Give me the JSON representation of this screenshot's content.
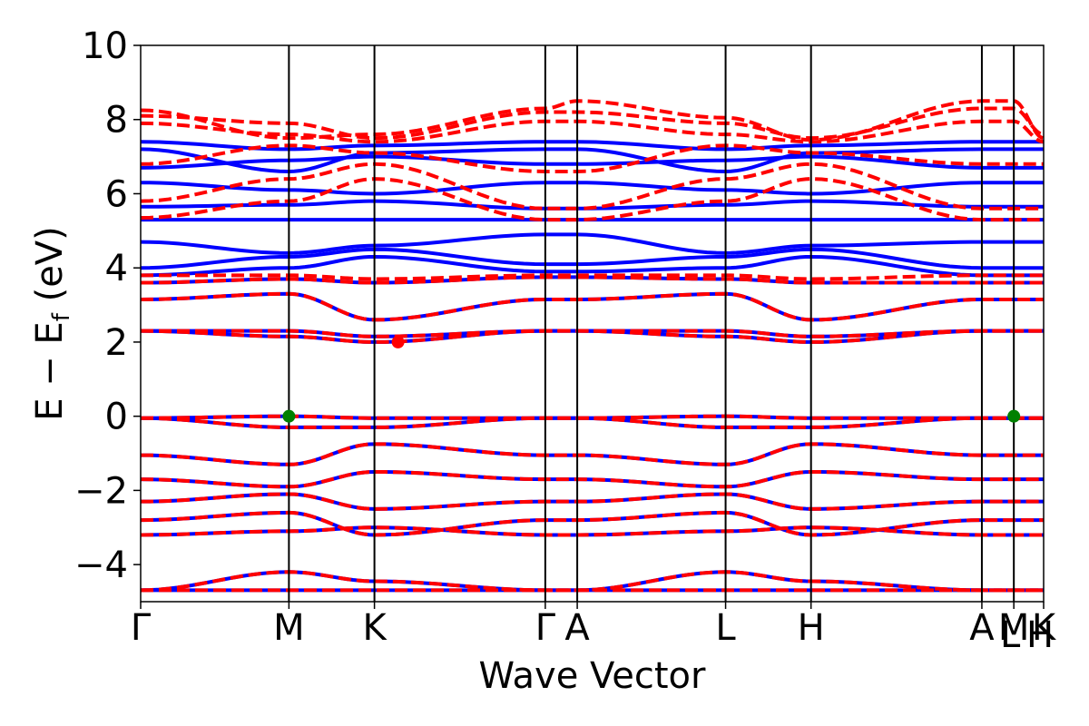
{
  "chart_data": {
    "type": "line",
    "title": "",
    "xlabel": "Wave Vector",
    "ylabel_main": "E − E",
    "ylabel_sub": "f",
    "ylabel_unit": " (eV)",
    "ylim": [
      -5,
      10
    ],
    "yticks": [
      -4,
      -2,
      0,
      2,
      4,
      6,
      8,
      10
    ],
    "ytick_labels": [
      "−4",
      "−2",
      "0",
      "2",
      "4",
      "6",
      "8",
      "10"
    ],
    "kpath_positions": [
      0,
      0.1642,
      0.2589,
      0.4481,
      0.4835,
      0.6478,
      0.7424,
      0.9316,
      0.967,
      1.0
    ],
    "kpath_labels": [
      "Γ",
      "M",
      "K",
      "Γ",
      "A",
      "L",
      "H",
      "A",
      "M",
      "K"
    ],
    "kpath_sublabels": [
      "",
      "",
      "",
      "",
      "",
      "",
      "",
      "",
      "L",
      "H"
    ],
    "series": [
      {
        "color": "#0000ff",
        "style": "solid",
        "bands": [
          {
            "y": [
              -4.69,
              -4.69,
              -4.69,
              -4.69,
              -4.69,
              -4.69,
              -4.69,
              -4.69,
              -4.69,
              -4.69
            ]
          },
          {
            "y": [
              -4.69,
              -4.2,
              -4.45,
              -4.69,
              -4.69,
              -4.2,
              -4.45,
              -4.69,
              -4.69,
              -4.69
            ]
          },
          {
            "y": [
              -3.2,
              -3.1,
              -3.0,
              -3.2,
              -3.2,
              -3.1,
              -3.0,
              -3.2,
              -3.2,
              -3.2
            ]
          },
          {
            "y": [
              -2.8,
              -2.6,
              -3.2,
              -2.8,
              -2.8,
              -2.6,
              -3.2,
              -2.8,
              -2.8,
              -2.8
            ]
          },
          {
            "y": [
              -2.3,
              -2.1,
              -2.5,
              -2.3,
              -2.3,
              -2.1,
              -2.5,
              -2.3,
              -2.3,
              -2.3
            ]
          },
          {
            "y": [
              -1.7,
              -1.9,
              -1.5,
              -1.7,
              -1.7,
              -1.9,
              -1.5,
              -1.7,
              -1.7,
              -1.7
            ]
          },
          {
            "y": [
              -1.05,
              -1.3,
              -0.75,
              -1.05,
              -1.05,
              -1.3,
              -0.75,
              -1.05,
              -1.05,
              -1.05
            ]
          },
          {
            "y": [
              -0.05,
              0.0,
              -0.05,
              -0.05,
              -0.05,
              0.0,
              -0.05,
              -0.05,
              -0.05,
              -0.05
            ]
          },
          {
            "y": [
              -0.05,
              -0.3,
              -0.3,
              -0.05,
              -0.05,
              -0.3,
              -0.3,
              -0.05,
              -0.05,
              -0.05
            ]
          },
          {
            "y": [
              2.3,
              2.15,
              2.0,
              2.3,
              2.3,
              2.15,
              2.0,
              2.3,
              2.3,
              2.3
            ]
          },
          {
            "y": [
              2.3,
              2.3,
              2.15,
              2.3,
              2.3,
              2.3,
              2.15,
              2.3,
              2.3,
              2.3
            ]
          },
          {
            "y": [
              3.15,
              3.3,
              2.6,
              3.15,
              3.15,
              3.3,
              2.6,
              3.15,
              3.15,
              3.15
            ]
          },
          {
            "y": [
              3.6,
              3.7,
              3.6,
              3.75,
              3.75,
              3.7,
              3.6,
              3.6,
              3.6,
              3.6
            ]
          },
          {
            "y": [
              3.8,
              4.0,
              4.3,
              3.9,
              3.9,
              4.0,
              4.3,
              3.8,
              3.8,
              3.8
            ]
          },
          {
            "y": [
              4.0,
              4.3,
              4.5,
              4.1,
              4.1,
              4.3,
              4.5,
              4.0,
              4.0,
              4.0
            ]
          },
          {
            "y": [
              4.7,
              4.4,
              4.6,
              4.9,
              4.9,
              4.4,
              4.6,
              4.7,
              4.7,
              4.7
            ]
          },
          {
            "y": [
              5.3,
              5.3,
              5.3,
              5.3,
              5.3,
              5.3,
              5.3,
              5.3,
              5.3,
              5.3
            ]
          },
          {
            "y": [
              5.65,
              5.7,
              5.8,
              5.6,
              5.6,
              5.7,
              5.8,
              5.65,
              5.65,
              5.65
            ]
          },
          {
            "y": [
              6.3,
              6.1,
              6.0,
              6.3,
              6.3,
              6.1,
              6.0,
              6.3,
              6.3,
              6.3
            ]
          },
          {
            "y": [
              6.7,
              6.9,
              7.0,
              6.8,
              6.8,
              6.9,
              7.0,
              6.7,
              6.7,
              6.7
            ]
          },
          {
            "y": [
              7.2,
              6.6,
              7.1,
              7.2,
              7.2,
              6.6,
              7.1,
              7.2,
              7.2,
              7.2
            ]
          },
          {
            "y": [
              7.4,
              7.2,
              7.3,
              7.4,
              7.4,
              7.2,
              7.3,
              7.4,
              7.4,
              7.4
            ]
          }
        ]
      },
      {
        "color": "#ff0000",
        "style": "dashed",
        "bands": [
          {
            "y": [
              -4.69,
              -4.69,
              -4.69,
              -4.69,
              -4.69,
              -4.69,
              -4.69,
              -4.69,
              -4.69,
              -4.69
            ]
          },
          {
            "y": [
              -4.69,
              -4.2,
              -4.45,
              -4.69,
              -4.69,
              -4.2,
              -4.45,
              -4.69,
              -4.69,
              -4.69
            ]
          },
          {
            "y": [
              -3.2,
              -3.1,
              -3.0,
              -3.2,
              -3.2,
              -3.1,
              -3.0,
              -3.2,
              -3.2,
              -3.2
            ]
          },
          {
            "y": [
              -2.8,
              -2.6,
              -3.2,
              -2.8,
              -2.8,
              -2.6,
              -3.2,
              -2.8,
              -2.8,
              -2.8
            ]
          },
          {
            "y": [
              -2.3,
              -2.1,
              -2.5,
              -2.3,
              -2.3,
              -2.1,
              -2.5,
              -2.3,
              -2.3,
              -2.3
            ]
          },
          {
            "y": [
              -1.7,
              -1.9,
              -1.5,
              -1.7,
              -1.7,
              -1.9,
              -1.5,
              -1.7,
              -1.7,
              -1.7
            ]
          },
          {
            "y": [
              -1.05,
              -1.3,
              -0.75,
              -1.05,
              -1.05,
              -1.3,
              -0.75,
              -1.05,
              -1.05,
              -1.05
            ]
          },
          {
            "y": [
              -0.05,
              0.0,
              -0.05,
              -0.05,
              -0.05,
              0.0,
              -0.05,
              -0.05,
              -0.05,
              -0.05
            ]
          },
          {
            "y": [
              -0.05,
              -0.3,
              -0.3,
              -0.05,
              -0.05,
              -0.3,
              -0.3,
              -0.05,
              -0.05,
              -0.05
            ]
          },
          {
            "y": [
              2.3,
              2.15,
              2.0,
              2.3,
              2.3,
              2.15,
              2.0,
              2.3,
              2.3,
              2.3
            ]
          },
          {
            "y": [
              2.3,
              2.3,
              2.15,
              2.3,
              2.3,
              2.3,
              2.15,
              2.3,
              2.3,
              2.3
            ]
          },
          {
            "y": [
              3.15,
              3.3,
              2.6,
              3.15,
              3.15,
              3.3,
              2.6,
              3.15,
              3.15,
              3.15
            ]
          },
          {
            "y": [
              3.6,
              3.7,
              3.6,
              3.75,
              3.75,
              3.7,
              3.6,
              3.6,
              3.6,
              3.6
            ]
          },
          {
            "y": [
              3.8,
              3.8,
              3.7,
              3.8,
              3.8,
              3.8,
              3.7,
              3.8,
              3.8,
              3.8
            ]
          },
          {
            "y": [
              5.35,
              5.8,
              6.4,
              5.3,
              5.3,
              5.8,
              6.4,
              5.3,
              5.3,
              5.3
            ]
          },
          {
            "y": [
              5.8,
              6.4,
              6.8,
              5.6,
              5.6,
              6.4,
              6.8,
              5.6,
              5.6,
              5.6
            ]
          },
          {
            "y": [
              6.8,
              7.3,
              7.1,
              6.6,
              6.6,
              7.3,
              7.1,
              6.8,
              6.8,
              6.8
            ]
          },
          {
            "y": [
              7.9,
              7.6,
              7.4,
              7.95,
              7.95,
              7.6,
              7.4,
              7.95,
              7.95,
              7.4
            ]
          },
          {
            "y": [
              8.1,
              7.9,
              7.5,
              8.2,
              8.2,
              7.9,
              7.5,
              8.3,
              8.3,
              7.6
            ]
          },
          {
            "y": [
              8.25,
              7.5,
              7.6,
              8.3,
              8.5,
              8.05,
              7.45,
              8.5,
              8.5,
              7.5
            ]
          }
        ]
      }
    ],
    "highlight_points": [
      {
        "k": 0.1642,
        "y": 0.0,
        "color": "#008000"
      },
      {
        "k": 0.967,
        "y": 0.0,
        "color": "#008000"
      },
      {
        "k": 0.285,
        "y": 2.0,
        "color": "#ff0000"
      }
    ]
  }
}
